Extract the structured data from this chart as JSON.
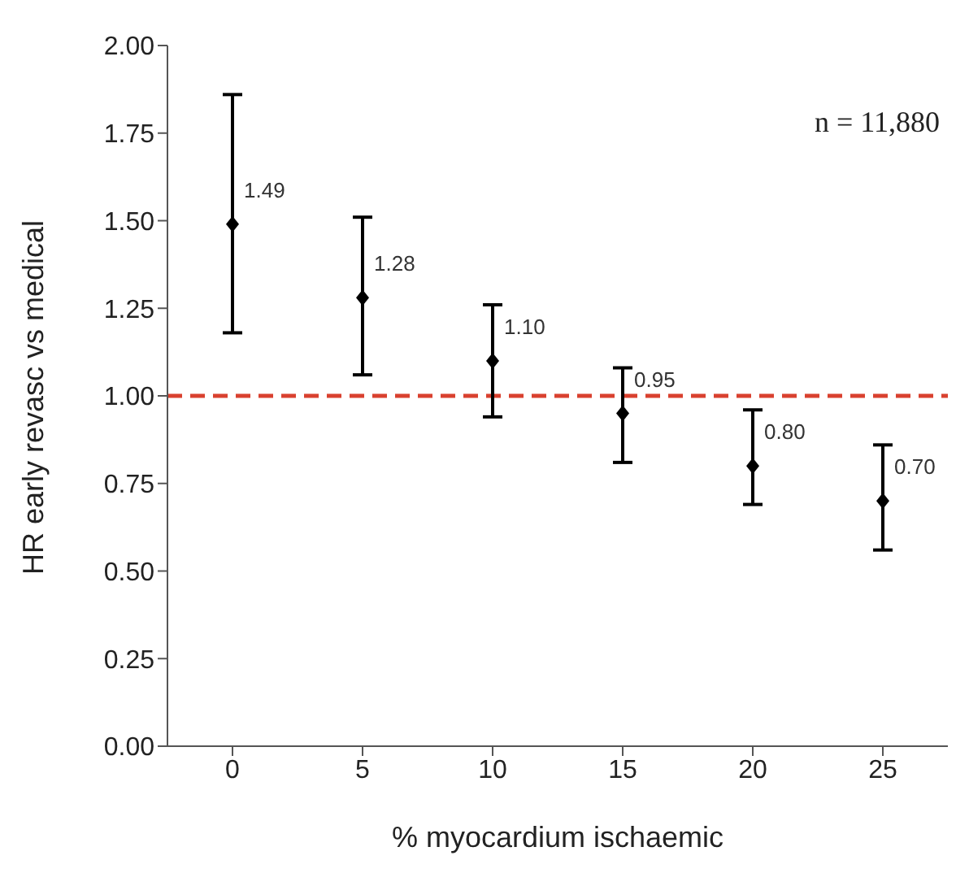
{
  "chart_data": {
    "type": "scatter",
    "xlabel": "% myocardium ischaemic",
    "ylabel": "HR early revasc vs medical",
    "categories": [
      "0",
      "5",
      "10",
      "15",
      "20",
      "25"
    ],
    "values": [
      1.49,
      1.28,
      1.1,
      0.95,
      0.8,
      0.7
    ],
    "errors": [
      [
        1.18,
        1.86
      ],
      [
        1.06,
        1.51
      ],
      [
        0.94,
        1.26
      ],
      [
        0.81,
        1.08
      ],
      [
        0.69,
        0.96
      ],
      [
        0.56,
        0.86
      ]
    ],
    "color": "#000000",
    "marker": "diamond",
    "value_labels": [
      "1.49",
      "1.28",
      "1.10",
      "0.95",
      "0.80",
      "0.70"
    ],
    "ylim": [
      0,
      2
    ],
    "yticks": [
      {
        "value": 0,
        "label": "0.00"
      },
      {
        "value": 0.25,
        "label": "0.25"
      },
      {
        "value": 0.5,
        "label": "0.50"
      },
      {
        "value": 0.75,
        "label": "0.75"
      },
      {
        "value": 1,
        "label": "1.00"
      },
      {
        "value": 1.25,
        "label": "1.25"
      },
      {
        "value": 1.5,
        "label": "1.50"
      },
      {
        "value": 1.75,
        "label": "1.75"
      },
      {
        "value": 2,
        "label": "2.00"
      }
    ],
    "ref_lines": [
      {
        "axis": "y",
        "value": 1,
        "color": "#d9412f",
        "line_style": "dashed"
      }
    ],
    "annotations": [
      "n = 11,880"
    ],
    "grid": false,
    "legend": false
  }
}
